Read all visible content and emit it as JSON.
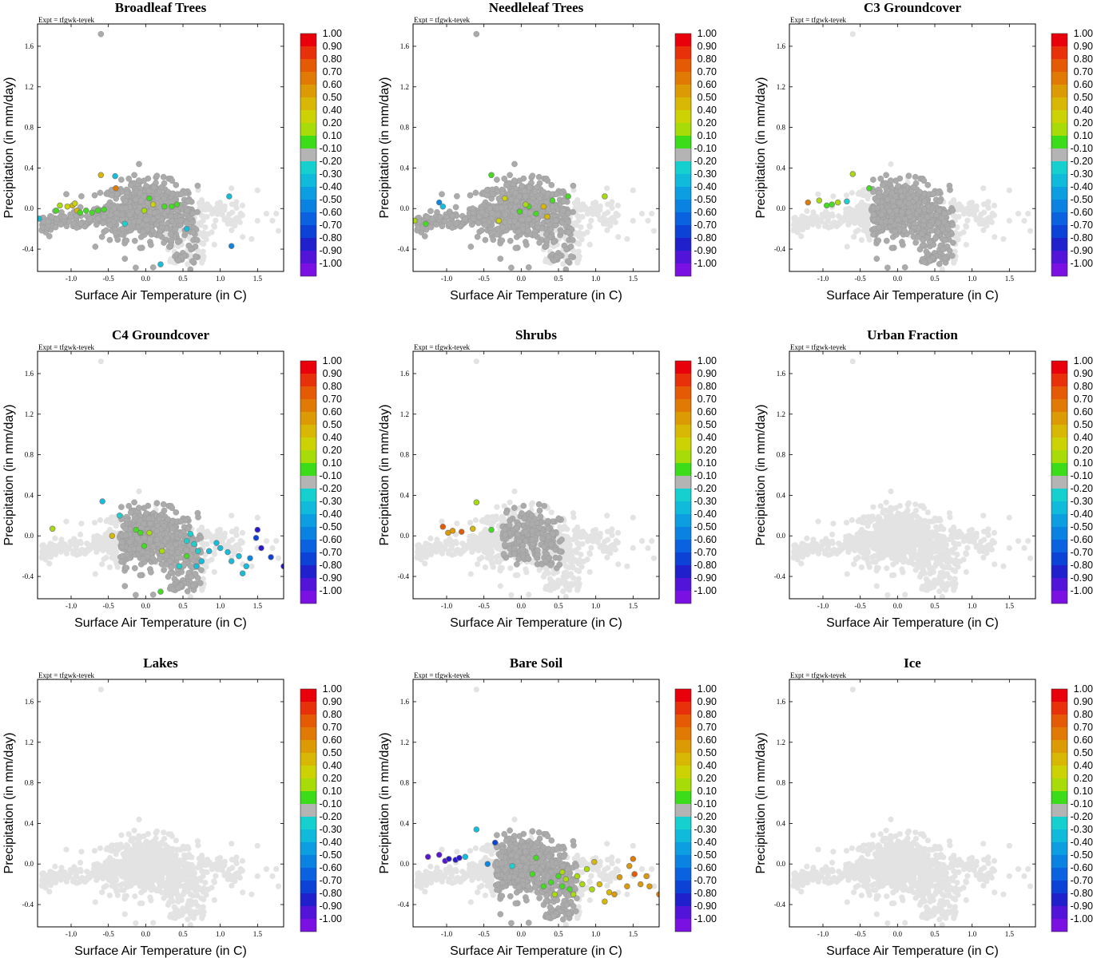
{
  "figure": {
    "shared": {
      "expt_label": "Expt = tfgwk-teyek",
      "xlabel": "Surface Air Temperature (in C)",
      "ylabel": "Precipitation (in mm/day)",
      "xlim": [
        -1.45,
        1.85
      ],
      "ylim": [
        -0.62,
        1.82
      ],
      "xticks": [
        -1.0,
        -0.5,
        0.0,
        0.5,
        1.0,
        1.5
      ],
      "xtick_labels": [
        "-1.0",
        "-0.5",
        "0.0",
        "0.5",
        "1.0",
        "1.5"
      ],
      "yticks": [
        -0.4,
        0.0,
        0.4,
        0.8,
        1.2,
        1.6
      ],
      "ytick_labels": [
        "-0.4",
        "0.0",
        "0.4",
        "0.8",
        "1.2",
        "1.6"
      ]
    },
    "colorbar": {
      "labels": [
        "1.00",
        "0.90",
        "0.80",
        "0.70",
        "0.60",
        "0.50",
        "0.40",
        "0.20",
        "0.10",
        "-0.10",
        "-0.20",
        "-0.30",
        "-0.40",
        "-0.50",
        "-0.60",
        "-0.70",
        "-0.80",
        "-0.90",
        "-1.00"
      ],
      "colors": [
        "#e8000b",
        "#e8300a",
        "#e55a05",
        "#e07a04",
        "#dc9a04",
        "#d8b804",
        "#cdd204",
        "#a8dc08",
        "#3cdc1a",
        "#b4b4b4",
        "#16d0d0",
        "#10bada",
        "#0c9ee0",
        "#0a82e2",
        "#0a62e0",
        "#0c42d6",
        "#2020cc",
        "#5214d8",
        "#7a10e2"
      ]
    },
    "colors": {
      "background_point": "#e3e3e3",
      "active_point": "#ababab",
      "positive": {
        "0.1": "#44dc20",
        "0.2": "#a8dc08",
        "0.4": "#cdd204",
        "0.5": "#d8b804",
        "0.6": "#dc9a04",
        "0.7": "#e07a04",
        "0.8": "#e55a05"
      },
      "negative": {
        "-0.2": "#18d2d2",
        "-0.3": "#12bedc",
        "-0.5": "#0a86e2",
        "-0.7": "#0c42d6",
        "-0.8": "#2a18cc",
        "-0.9": "#5a14d8",
        "-1.0": "#7a10e2"
      }
    }
  },
  "chart_data": [
    {
      "type": "scatter",
      "title": "Broadleaf Trees",
      "xlabel": "Surface Air Temperature (in C)",
      "ylabel": "Precipitation (in mm/day)",
      "gray_extent": "most",
      "colored_points": [
        [
          -0.6,
          0.33,
          0.5
        ],
        [
          -0.4,
          0.2,
          0.7
        ],
        [
          -0.41,
          0.32,
          -0.3
        ],
        [
          -1.43,
          -0.1,
          -0.3
        ],
        [
          -1.2,
          -0.02,
          0.1
        ],
        [
          -1.15,
          0.03,
          0.2
        ],
        [
          -1.05,
          0.02,
          0.4
        ],
        [
          -0.98,
          0.03,
          0.5
        ],
        [
          -0.95,
          0.05,
          0.4
        ],
        [
          -0.92,
          -0.02,
          0.5
        ],
        [
          -0.88,
          -0.04,
          0.1
        ],
        [
          -0.8,
          -0.02,
          0.1
        ],
        [
          -0.72,
          -0.04,
          0.1
        ],
        [
          -0.64,
          -0.02,
          0.1
        ],
        [
          -0.56,
          -0.01,
          0.1
        ],
        [
          -0.28,
          -0.15,
          -0.2
        ],
        [
          0.05,
          0.1,
          0.1
        ],
        [
          -0.02,
          -0.02,
          0.2
        ],
        [
          0.1,
          0.04,
          0.4
        ],
        [
          0.25,
          0.02,
          0.1
        ],
        [
          0.35,
          0.02,
          0.1
        ],
        [
          0.42,
          0.04,
          0.1
        ],
        [
          0.2,
          -0.55,
          -0.3
        ],
        [
          0.55,
          -0.2,
          -0.3
        ],
        [
          1.12,
          0.12,
          -0.3
        ],
        [
          1.15,
          -0.37,
          -0.5
        ]
      ]
    },
    {
      "type": "scatter",
      "title": "Needleleaf Trees",
      "xlabel": "Surface Air Temperature (in C)",
      "ylabel": "Precipitation (in mm/day)",
      "gray_extent": "most",
      "colored_points": [
        [
          -1.43,
          -0.12,
          0.2
        ],
        [
          -1.28,
          -0.15,
          0.1
        ],
        [
          -1.1,
          0.06,
          -0.5
        ],
        [
          -1.05,
          0.02,
          -0.3
        ],
        [
          -0.4,
          0.33,
          0.1
        ],
        [
          -0.22,
          0.1,
          0.4
        ],
        [
          -0.3,
          -0.12,
          0.4
        ],
        [
          0.1,
          0.02,
          0.1
        ],
        [
          0.2,
          -0.05,
          0.1
        ],
        [
          0.3,
          0.02,
          0.5
        ],
        [
          0.35,
          -0.08,
          0.5
        ],
        [
          0.63,
          0.12,
          0.1
        ],
        [
          0.42,
          0.08,
          0.1
        ],
        [
          1.12,
          0.12,
          0.2
        ],
        [
          -0.02,
          -0.03,
          0.1
        ],
        [
          0.06,
          0.04,
          0.2
        ]
      ]
    },
    {
      "type": "scatter",
      "title": "C3 Groundcover",
      "xlabel": "Surface Air Temperature (in C)",
      "ylabel": "Precipitation (in mm/day)",
      "gray_extent": "subset",
      "colored_points": [
        [
          -1.2,
          0.06,
          0.7
        ],
        [
          -1.05,
          0.08,
          0.2
        ],
        [
          -0.95,
          0.03,
          0.1
        ],
        [
          -0.88,
          0.04,
          0.1
        ],
        [
          -0.8,
          0.06,
          0.2
        ],
        [
          -0.68,
          0.07,
          -0.2
        ],
        [
          -0.6,
          0.34,
          0.2
        ],
        [
          -0.38,
          0.2,
          0.1
        ]
      ]
    },
    {
      "type": "scatter",
      "title": "C4 Groundcover",
      "xlabel": "Surface Air Temperature (in C)",
      "ylabel": "Precipitation (in mm/day)",
      "gray_extent": "subset",
      "colored_points": [
        [
          -1.25,
          0.07,
          0.2
        ],
        [
          -0.58,
          0.34,
          -0.3
        ],
        [
          -0.35,
          0.2,
          -0.2
        ],
        [
          -0.45,
          0.0,
          0.5
        ],
        [
          -0.13,
          0.06,
          0.1
        ],
        [
          -0.07,
          0.03,
          0.1
        ],
        [
          0.05,
          0.03,
          0.2
        ],
        [
          0.22,
          -0.15,
          0.2
        ],
        [
          -0.02,
          -0.1,
          0.1
        ],
        [
          0.55,
          -0.2,
          0.1
        ],
        [
          0.6,
          0.02,
          -0.2
        ],
        [
          0.55,
          -0.05,
          -0.2
        ],
        [
          0.65,
          -0.08,
          -0.2
        ],
        [
          0.7,
          -0.15,
          -0.2
        ],
        [
          0.75,
          -0.25,
          -0.3
        ],
        [
          0.68,
          -0.3,
          -0.3
        ],
        [
          0.85,
          -0.15,
          -0.3
        ],
        [
          0.95,
          -0.07,
          -0.3
        ],
        [
          1.0,
          -0.12,
          -0.3
        ],
        [
          1.1,
          -0.16,
          -0.3
        ],
        [
          1.15,
          -0.25,
          -0.3
        ],
        [
          1.25,
          -0.2,
          -0.3
        ],
        [
          1.35,
          -0.3,
          -0.3
        ],
        [
          1.4,
          -0.22,
          -0.5
        ],
        [
          1.48,
          -0.02,
          -0.7
        ],
        [
          1.5,
          0.06,
          -0.8
        ],
        [
          1.55,
          -0.12,
          -0.8
        ],
        [
          1.68,
          -0.21,
          -0.7
        ],
        [
          1.85,
          -0.3,
          -0.8
        ],
        [
          1.3,
          -0.37,
          -0.3
        ],
        [
          0.2,
          -0.55,
          0.1
        ],
        [
          0.45,
          -0.3,
          -0.2
        ]
      ]
    },
    {
      "type": "scatter",
      "title": "Shrubs",
      "xlabel": "Surface Air Temperature (in C)",
      "ylabel": "Precipitation (in mm/day)",
      "gray_extent": "small",
      "colored_points": [
        [
          -1.05,
          0.09,
          0.8
        ],
        [
          -0.98,
          0.03,
          0.6
        ],
        [
          -0.92,
          0.05,
          0.6
        ],
        [
          -0.8,
          0.04,
          0.8
        ],
        [
          -0.65,
          0.07,
          0.5
        ],
        [
          -0.6,
          0.33,
          0.2
        ],
        [
          -0.4,
          0.06,
          0.1
        ]
      ]
    },
    {
      "type": "scatter",
      "title": "Urban Fraction",
      "xlabel": "Surface Air Temperature (in C)",
      "ylabel": "Precipitation (in mm/day)",
      "gray_extent": "none",
      "colored_points": []
    },
    {
      "type": "scatter",
      "title": "Lakes",
      "xlabel": "Surface Air Temperature (in C)",
      "ylabel": "Precipitation (in mm/day)",
      "gray_extent": "none",
      "colored_points": []
    },
    {
      "type": "scatter",
      "title": "Bare Soil",
      "xlabel": "Surface Air Temperature (in C)",
      "ylabel": "Precipitation (in mm/day)",
      "gray_extent": "subset",
      "colored_points": [
        [
          -1.25,
          0.07,
          -0.9
        ],
        [
          -1.1,
          0.09,
          -0.9
        ],
        [
          -1.02,
          0.03,
          -0.9
        ],
        [
          -0.97,
          0.05,
          -0.8
        ],
        [
          -0.88,
          0.04,
          -0.8
        ],
        [
          -0.83,
          0.06,
          -0.8
        ],
        [
          -0.75,
          0.07,
          -0.3
        ],
        [
          -0.6,
          0.34,
          -0.3
        ],
        [
          -0.45,
          0.0,
          -0.5
        ],
        [
          -0.35,
          0.21,
          -0.7
        ],
        [
          0.2,
          0.06,
          0.1
        ],
        [
          0.5,
          -0.12,
          0.1
        ],
        [
          0.55,
          -0.08,
          0.2
        ],
        [
          0.6,
          -0.15,
          0.2
        ],
        [
          0.55,
          -0.22,
          0.1
        ],
        [
          0.65,
          -0.25,
          0.1
        ],
        [
          0.7,
          -0.3,
          0.2
        ],
        [
          0.75,
          -0.12,
          0.2
        ],
        [
          0.82,
          -0.2,
          0.2
        ],
        [
          0.88,
          -0.05,
          0.2
        ],
        [
          0.95,
          -0.25,
          0.2
        ],
        [
          0.98,
          0.02,
          0.5
        ],
        [
          1.05,
          -0.2,
          0.5
        ],
        [
          1.12,
          -0.37,
          0.5
        ],
        [
          1.18,
          -0.28,
          0.5
        ],
        [
          1.25,
          -0.3,
          0.6
        ],
        [
          1.32,
          -0.13,
          0.6
        ],
        [
          1.42,
          -0.22,
          0.6
        ],
        [
          1.45,
          -0.02,
          0.6
        ],
        [
          1.5,
          0.05,
          0.7
        ],
        [
          1.52,
          -0.1,
          0.8
        ],
        [
          1.6,
          -0.2,
          0.6
        ],
        [
          1.68,
          -0.12,
          0.6
        ],
        [
          1.72,
          -0.22,
          0.6
        ],
        [
          1.85,
          -0.3,
          0.7
        ],
        [
          0.3,
          -0.22,
          0.1
        ],
        [
          0.4,
          -0.18,
          0.1
        ],
        [
          0.45,
          -0.3,
          0.2
        ],
        [
          -0.12,
          -0.02,
          -0.2
        ],
        [
          0.15,
          -0.1,
          0.1
        ]
      ]
    },
    {
      "type": "scatter",
      "title": "Ice",
      "xlabel": "Surface Air Temperature (in C)",
      "ylabel": "Precipitation (in mm/day)",
      "gray_extent": "none",
      "colored_points": []
    }
  ]
}
